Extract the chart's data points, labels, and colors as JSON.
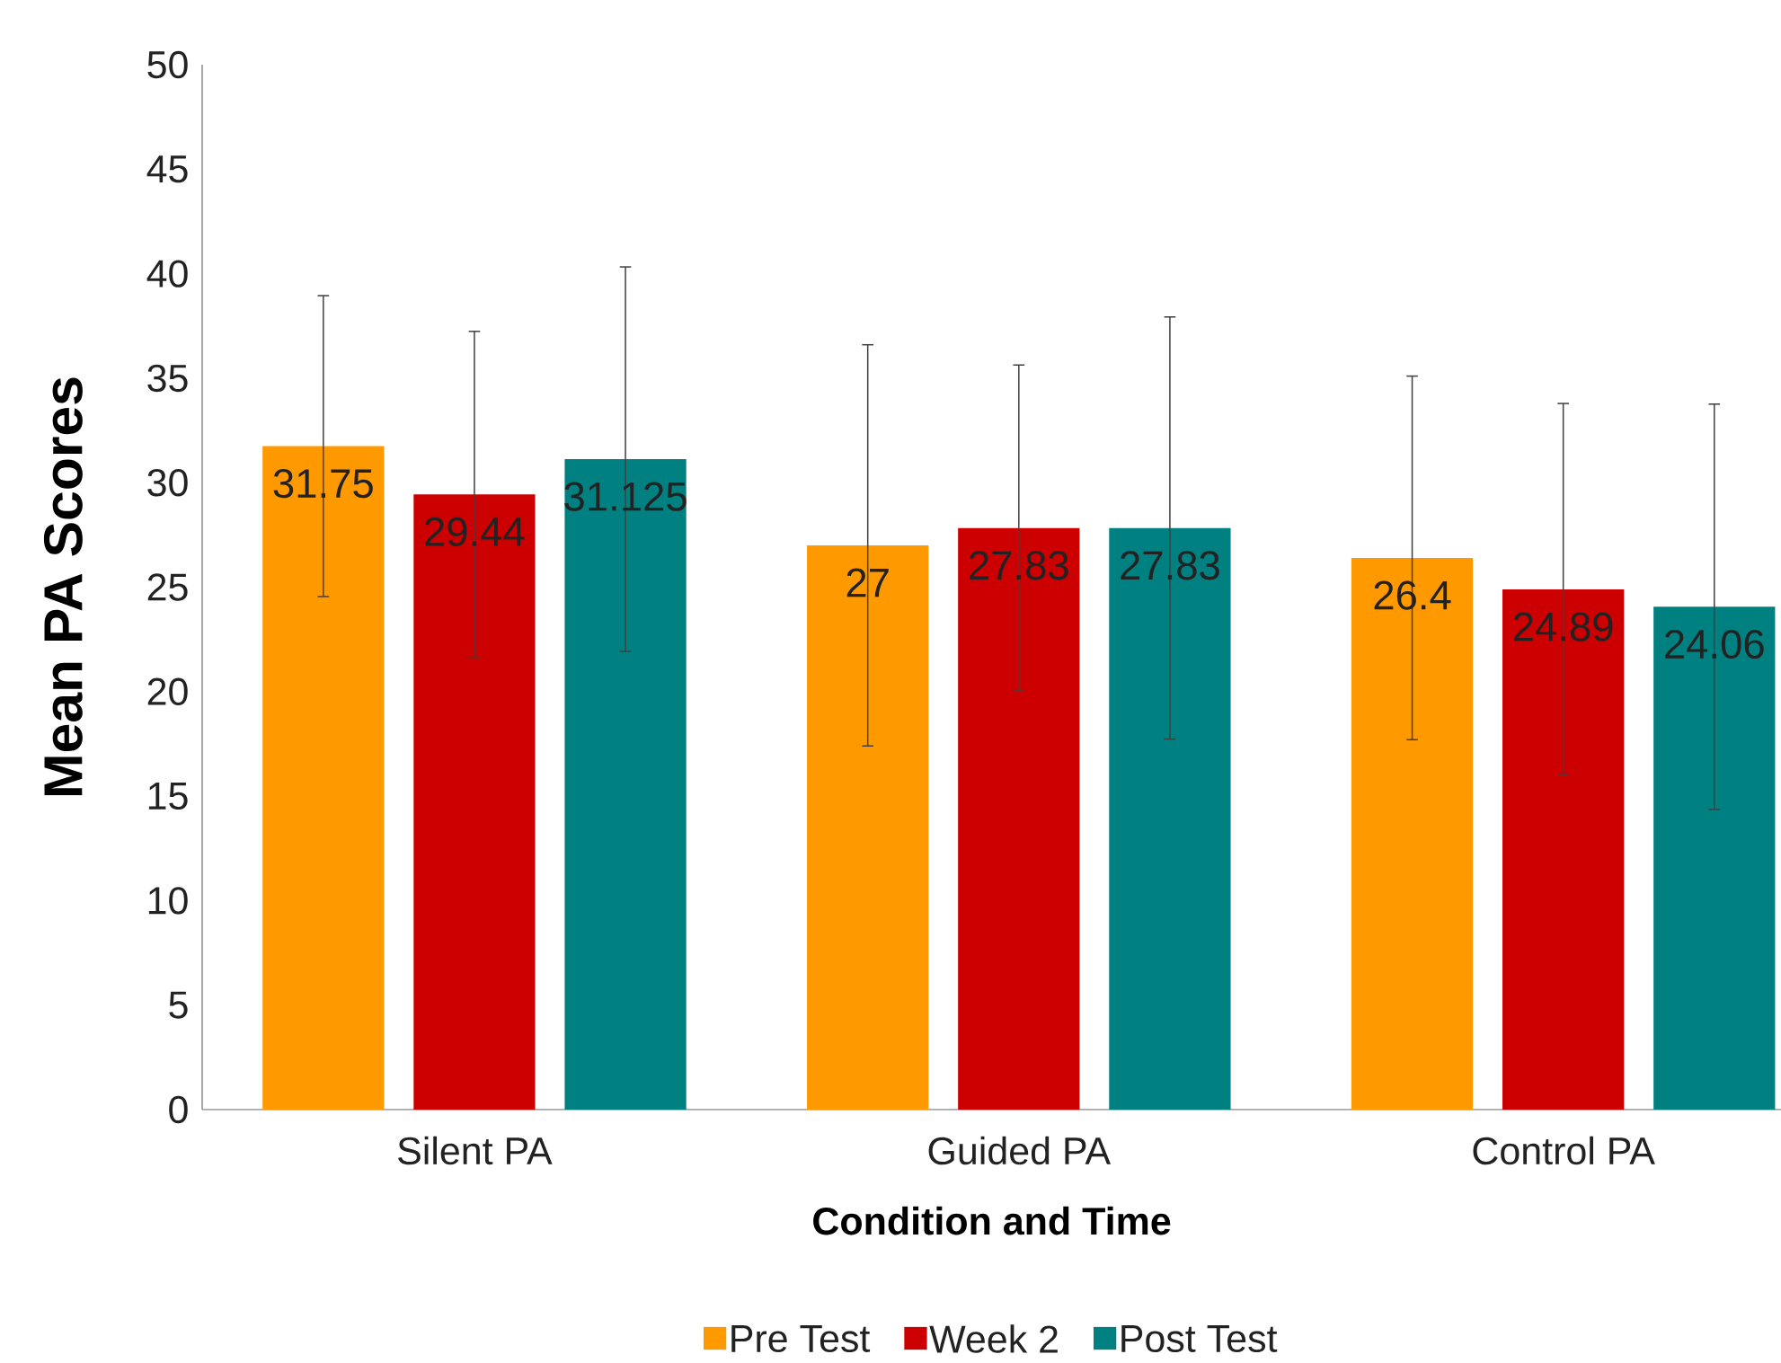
{
  "chart_data": {
    "type": "bar",
    "categories": [
      "Silent PA",
      "Guided PA",
      "Control PA"
    ],
    "xlabel": "Condition and Time",
    "ylabel": "Mean PA Scores",
    "ylim": [
      0,
      50
    ],
    "yticks": [
      0,
      5,
      10,
      15,
      20,
      25,
      30,
      35,
      40,
      45,
      50
    ],
    "legend": "bottom",
    "data_labels": true,
    "series": [
      {
        "name": "Pre Test",
        "color": "#ff9900",
        "values": [
          31.75,
          27,
          26.4
        ],
        "errors": [
          7.2,
          9.6,
          8.7
        ]
      },
      {
        "name": "Week 2",
        "color": "#cc0000",
        "values": [
          29.44,
          27.83,
          24.89
        ],
        "errors": [
          7.8,
          7.8,
          8.9
        ]
      },
      {
        "name": "Post Test",
        "color": "#008080",
        "values": [
          31.125,
          27.83,
          24.06
        ],
        "errors": [
          9.2,
          10.1,
          9.7
        ]
      }
    ]
  }
}
